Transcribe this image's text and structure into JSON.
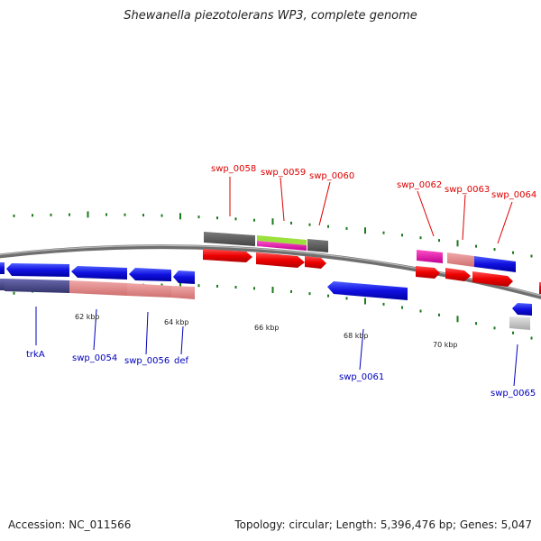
{
  "title": "Shewanella piezotolerans WP3, complete genome",
  "footer": {
    "accession": "Accession: NC_011566",
    "summary": "Topology: circular; Length: 5,396,476 bp; Genes: 5,047"
  },
  "colors": {
    "label_forward": "#dd0000",
    "label_reverse": "#0000bb",
    "backbone": "#777777",
    "tick": "#1a7a1a"
  },
  "kbp_labels": [
    "62 kbp",
    "64 kbp",
    "66 kbp",
    "68 kbp",
    "70 kbp"
  ],
  "genes_forward": [
    {
      "name": "swp_0058",
      "color": "#d00000",
      "feature_color": "#555555"
    },
    {
      "name": "swp_0059",
      "color": "#d00000",
      "feature_color": "#9be03c"
    },
    {
      "name": "swp_0060",
      "color": "#d00000",
      "feature_color": "#555555"
    },
    {
      "name": "swp_0062",
      "color": "#d00000",
      "feature_color": "#e020a0"
    },
    {
      "name": "swp_0063",
      "color": "#d00000",
      "feature_color": "#e89090"
    },
    {
      "name": "swp_0064",
      "color": "#d00000",
      "feature_color": "#1010dd"
    }
  ],
  "genes_reverse": [
    {
      "name": "trkA",
      "color": "#0000cc"
    },
    {
      "name": "swp_0054",
      "color": "#0000cc"
    },
    {
      "name": "swp_0056",
      "color": "#0000cc"
    },
    {
      "name": "def",
      "color": "#0000cc"
    },
    {
      "name": "swp_0061",
      "color": "#0000cc"
    },
    {
      "name": "swp_0065",
      "color": "#0000cc"
    }
  ]
}
